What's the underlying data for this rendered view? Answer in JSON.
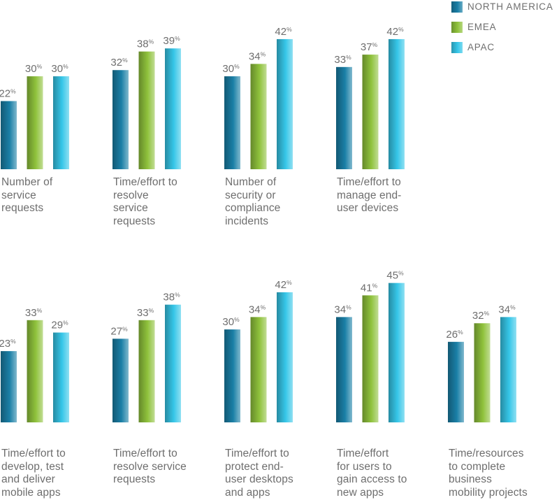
{
  "colors": {
    "north_america": "#1a7fa6",
    "emea": "#8fc23c",
    "apac": "#36c6e8",
    "text": "#6e6e6e"
  },
  "legend": [
    {
      "key": "north_america",
      "label": "NORTH AMERICA"
    },
    {
      "key": "emea",
      "label": "EMEA"
    },
    {
      "key": "apac",
      "label": "APAC"
    }
  ],
  "chart_data": {
    "type": "bar",
    "title": "",
    "xlabel": "",
    "ylabel": "",
    "value_suffix": "%",
    "series_names": [
      "NORTH AMERICA",
      "EMEA",
      "APAC"
    ],
    "categories": [
      "Number of\nservice\nrequests",
      "Time/effort to\nresolve\nservice\nrequests",
      "Number of\nsecurity or\ncompliance\nincidents",
      "Time/effort to\nmanage end-\nuser devices",
      "Time/effort to\ndevelop, test\nand deliver\nmobile apps",
      "Time/effort to\nresolve service\nrequests",
      "Time/effort to\nprotect end-\nuser desktops\nand apps",
      "Time/effort\nfor users to\ngain access to\nnew apps",
      "Time/resources\nto complete\nbusiness\nmobility projects"
    ],
    "series": [
      {
        "name": "NORTH AMERICA",
        "values": [
          22,
          32,
          30,
          33,
          23,
          27,
          30,
          34,
          26
        ]
      },
      {
        "name": "EMEA",
        "values": [
          30,
          38,
          34,
          37,
          33,
          33,
          34,
          41,
          32
        ]
      },
      {
        "name": "APAC",
        "values": [
          30,
          39,
          42,
          42,
          29,
          38,
          42,
          45,
          34
        ]
      }
    ]
  }
}
